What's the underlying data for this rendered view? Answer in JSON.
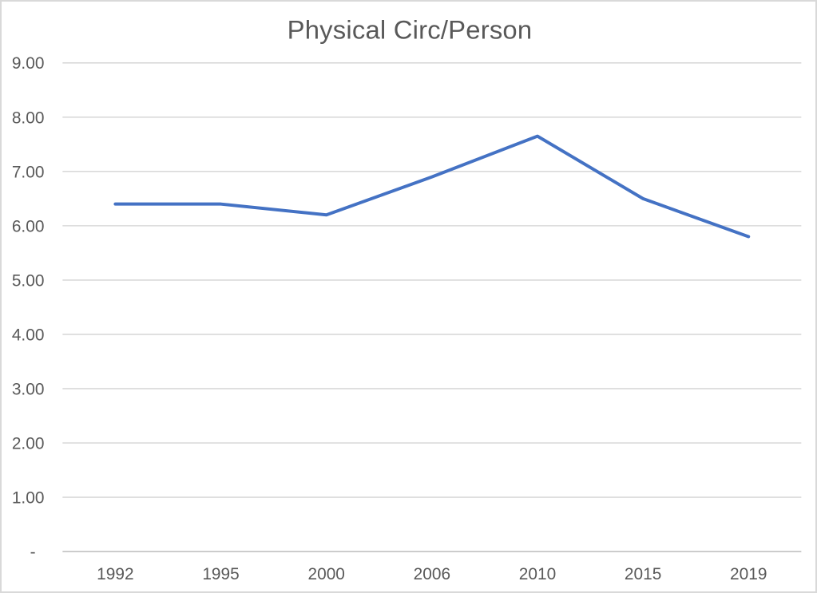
{
  "chart_data": {
    "type": "line",
    "title": "Physical Circ/Person",
    "categories": [
      "1992",
      "1995",
      "2000",
      "2006",
      "2010",
      "2015",
      "2019"
    ],
    "values": [
      6.4,
      6.4,
      6.2,
      6.9,
      7.65,
      6.5,
      5.8
    ],
    "xlabel": "",
    "ylabel": "",
    "ylim": [
      0,
      9
    ],
    "y_tick_interval": 1,
    "y_ticks": [
      {
        "value": 9,
        "label": "9.00"
      },
      {
        "value": 8,
        "label": "8.00"
      },
      {
        "value": 7,
        "label": "7.00"
      },
      {
        "value": 6,
        "label": "6.00"
      },
      {
        "value": 5,
        "label": "5.00"
      },
      {
        "value": 4,
        "label": "4.00"
      },
      {
        "value": 3,
        "label": "3.00"
      },
      {
        "value": 2,
        "label": "2.00"
      },
      {
        "value": 1,
        "label": "1.00"
      },
      {
        "value": 0,
        "label": "-"
      }
    ],
    "grid": true,
    "legend": false
  },
  "colors": {
    "series_line": "#4472C4",
    "gridline": "#D9D9D9",
    "axis_line": "#C9C9C9",
    "text": "#595959",
    "frame_border": "#D9D9D9",
    "background": "#FFFFFF"
  }
}
